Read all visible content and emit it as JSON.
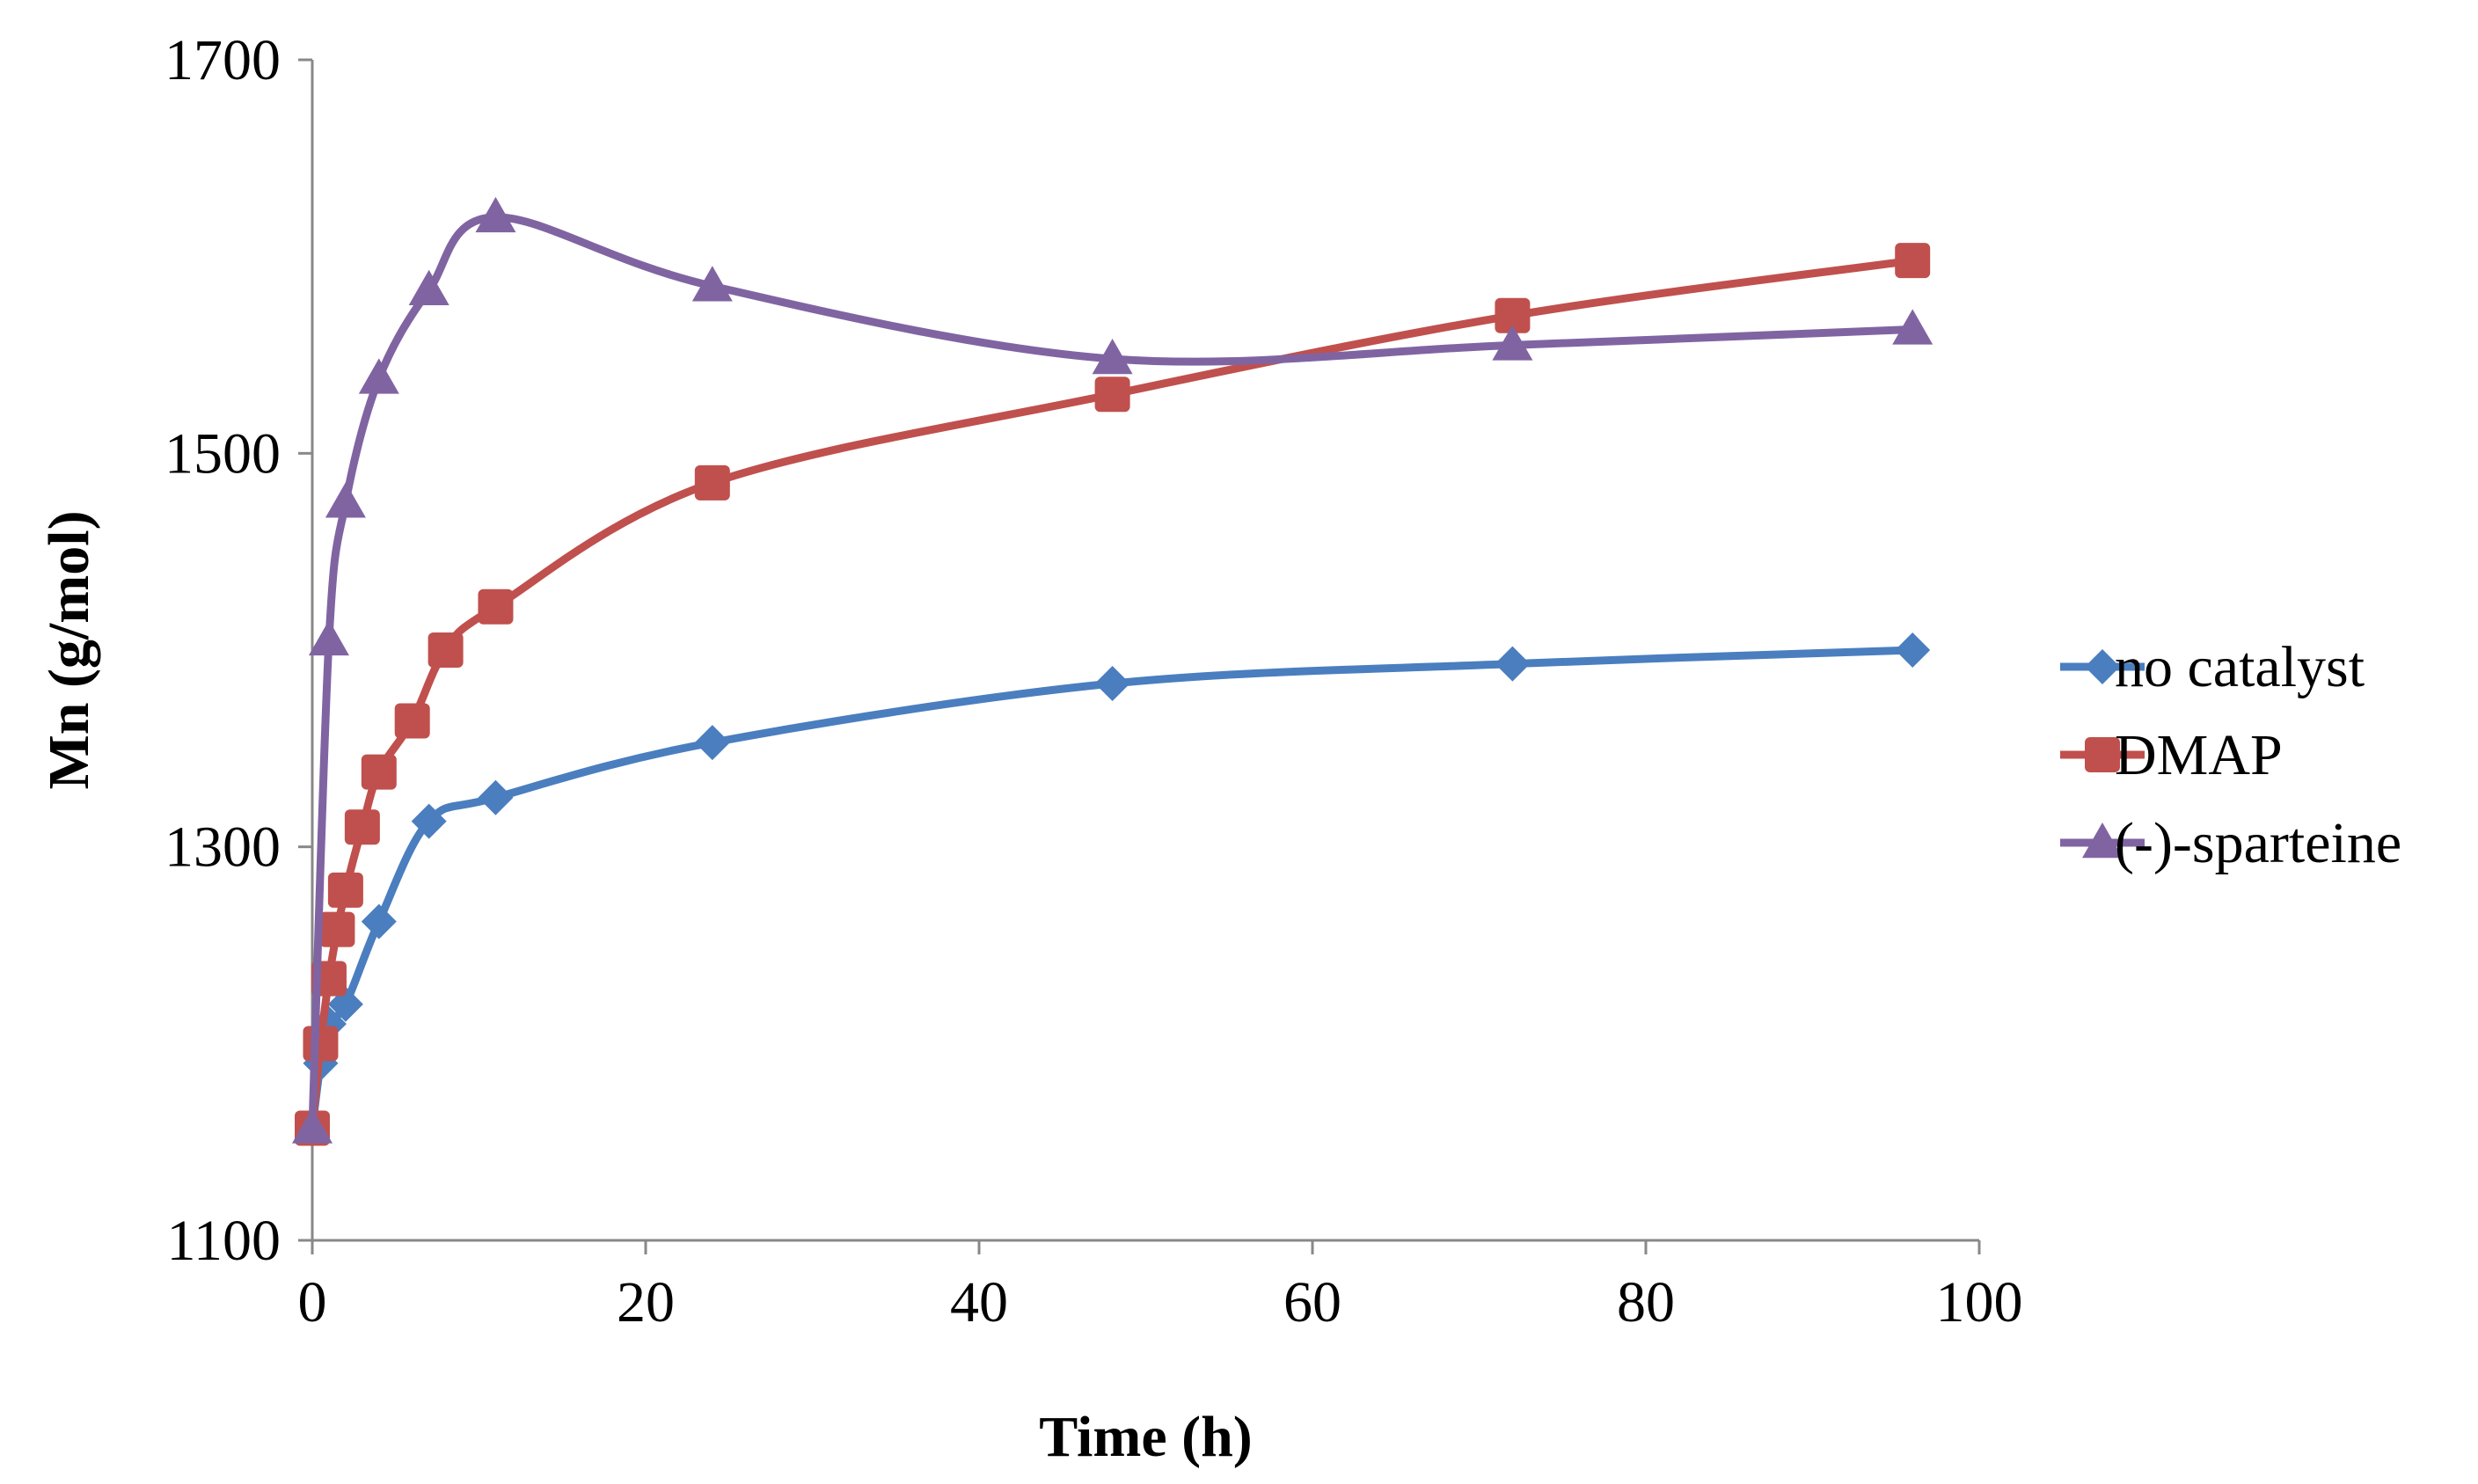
{
  "chart_data": {
    "type": "line",
    "title": "",
    "xlabel": "Time (h)",
    "ylabel": "Mn (g/mol)",
    "xlim": [
      0,
      100
    ],
    "ylim": [
      1100,
      1700
    ],
    "xticks": [
      0,
      20,
      40,
      60,
      80,
      100
    ],
    "yticks": [
      1100,
      1300,
      1500,
      1700
    ],
    "grid": false,
    "smooth": true,
    "legend_position": "right",
    "series": [
      {
        "name": "no catalyst",
        "color": "#4a7ebf",
        "marker": "diamond",
        "x": [
          0,
          0.5,
          1,
          2,
          4,
          7,
          11,
          24,
          48,
          72,
          96
        ],
        "y": [
          1157,
          1190,
          1210,
          1220,
          1262,
          1313,
          1325,
          1353,
          1383,
          1393,
          1400
        ]
      },
      {
        "name": "DMAP",
        "color": "#c0504d",
        "marker": "square",
        "x": [
          0,
          0.5,
          1,
          1.5,
          2,
          3,
          4,
          6,
          8,
          11,
          24,
          48,
          72,
          96
        ],
        "y": [
          1157,
          1200,
          1233,
          1258,
          1278,
          1310,
          1338,
          1364,
          1400,
          1422,
          1485,
          1530,
          1570,
          1598
        ]
      },
      {
        "name": "(-)-sparteine",
        "color": "#8064a2",
        "marker": "triangle",
        "x": [
          0,
          1,
          2,
          4,
          7,
          11,
          24,
          48,
          72,
          96
        ],
        "y": [
          1157,
          1405,
          1475,
          1538,
          1583,
          1620,
          1585,
          1548,
          1555,
          1563
        ]
      }
    ]
  }
}
